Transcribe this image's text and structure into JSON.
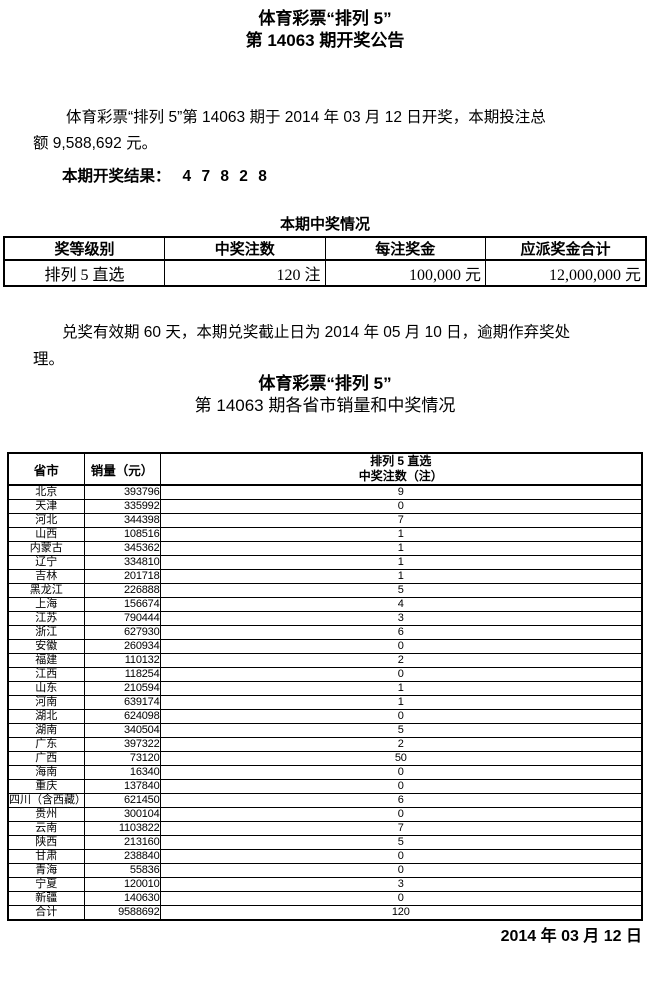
{
  "page": {
    "title_line1": "体育彩票“排列 5”",
    "title_line2": "第 14063 期开奖公告",
    "intro_line1": "体育彩票“排列 5”第 14063 期于 2014 年 03 月 12 日开奖，本期投注总",
    "intro_line2": "额 9,588,692 元。",
    "result_label": "本期开奖结果：",
    "result_numbers": "4 7 8 2 8",
    "prize_caption": "本期中奖情况",
    "redeem_line1": "兑奖有效期 60 天，本期兑奖截止日为 2014 年 05 月 10 日，逾期作弃奖处",
    "redeem_line2": "理。",
    "section2_title1": "体育彩票“排列 5”",
    "section2_title2": "第 14063 期各省市销量和中奖情况",
    "date": "2014 年 03 月 12 日"
  },
  "prize_table": {
    "headers": [
      "奖等级别",
      "中奖注数",
      "每注奖金",
      "应派奖金合计"
    ],
    "rows": [
      [
        "排列 5 直选",
        "120 注",
        "100,000 元",
        "12,000,000 元"
      ]
    ]
  },
  "province_table": {
    "header_province": "省市",
    "header_sales": "销量（元）",
    "header_wins_line1": "排列 5 直选",
    "header_wins_line2": "中奖注数（注）",
    "rows": [
      [
        "北京",
        "393796",
        "9"
      ],
      [
        "天津",
        "335992",
        "0"
      ],
      [
        "河北",
        "344398",
        "7"
      ],
      [
        "山西",
        "108516",
        "1"
      ],
      [
        "内蒙古",
        "345362",
        "1"
      ],
      [
        "辽宁",
        "334810",
        "1"
      ],
      [
        "吉林",
        "201718",
        "1"
      ],
      [
        "黑龙江",
        "226888",
        "5"
      ],
      [
        "上海",
        "156674",
        "4"
      ],
      [
        "江苏",
        "790444",
        "3"
      ],
      [
        "浙江",
        "627930",
        "6"
      ],
      [
        "安徽",
        "260934",
        "0"
      ],
      [
        "福建",
        "110132",
        "2"
      ],
      [
        "江西",
        "118254",
        "0"
      ],
      [
        "山东",
        "210594",
        "1"
      ],
      [
        "河南",
        "639174",
        "1"
      ],
      [
        "湖北",
        "624098",
        "0"
      ],
      [
        "湖南",
        "340504",
        "5"
      ],
      [
        "广东",
        "397322",
        "2"
      ],
      [
        "广西",
        "73120",
        "50"
      ],
      [
        "海南",
        "16340",
        "0"
      ],
      [
        "重庆",
        "137840",
        "0"
      ],
      [
        "四川（含西藏）",
        "621450",
        "6"
      ],
      [
        "贵州",
        "300104",
        "0"
      ],
      [
        "云南",
        "1103822",
        "7"
      ],
      [
        "陕西",
        "213160",
        "5"
      ],
      [
        "甘肃",
        "238840",
        "0"
      ],
      [
        "青海",
        "55836",
        "0"
      ],
      [
        "宁夏",
        "120010",
        "3"
      ],
      [
        "新疆",
        "140630",
        "0"
      ],
      [
        "合计",
        "9588692",
        "120"
      ]
    ]
  }
}
